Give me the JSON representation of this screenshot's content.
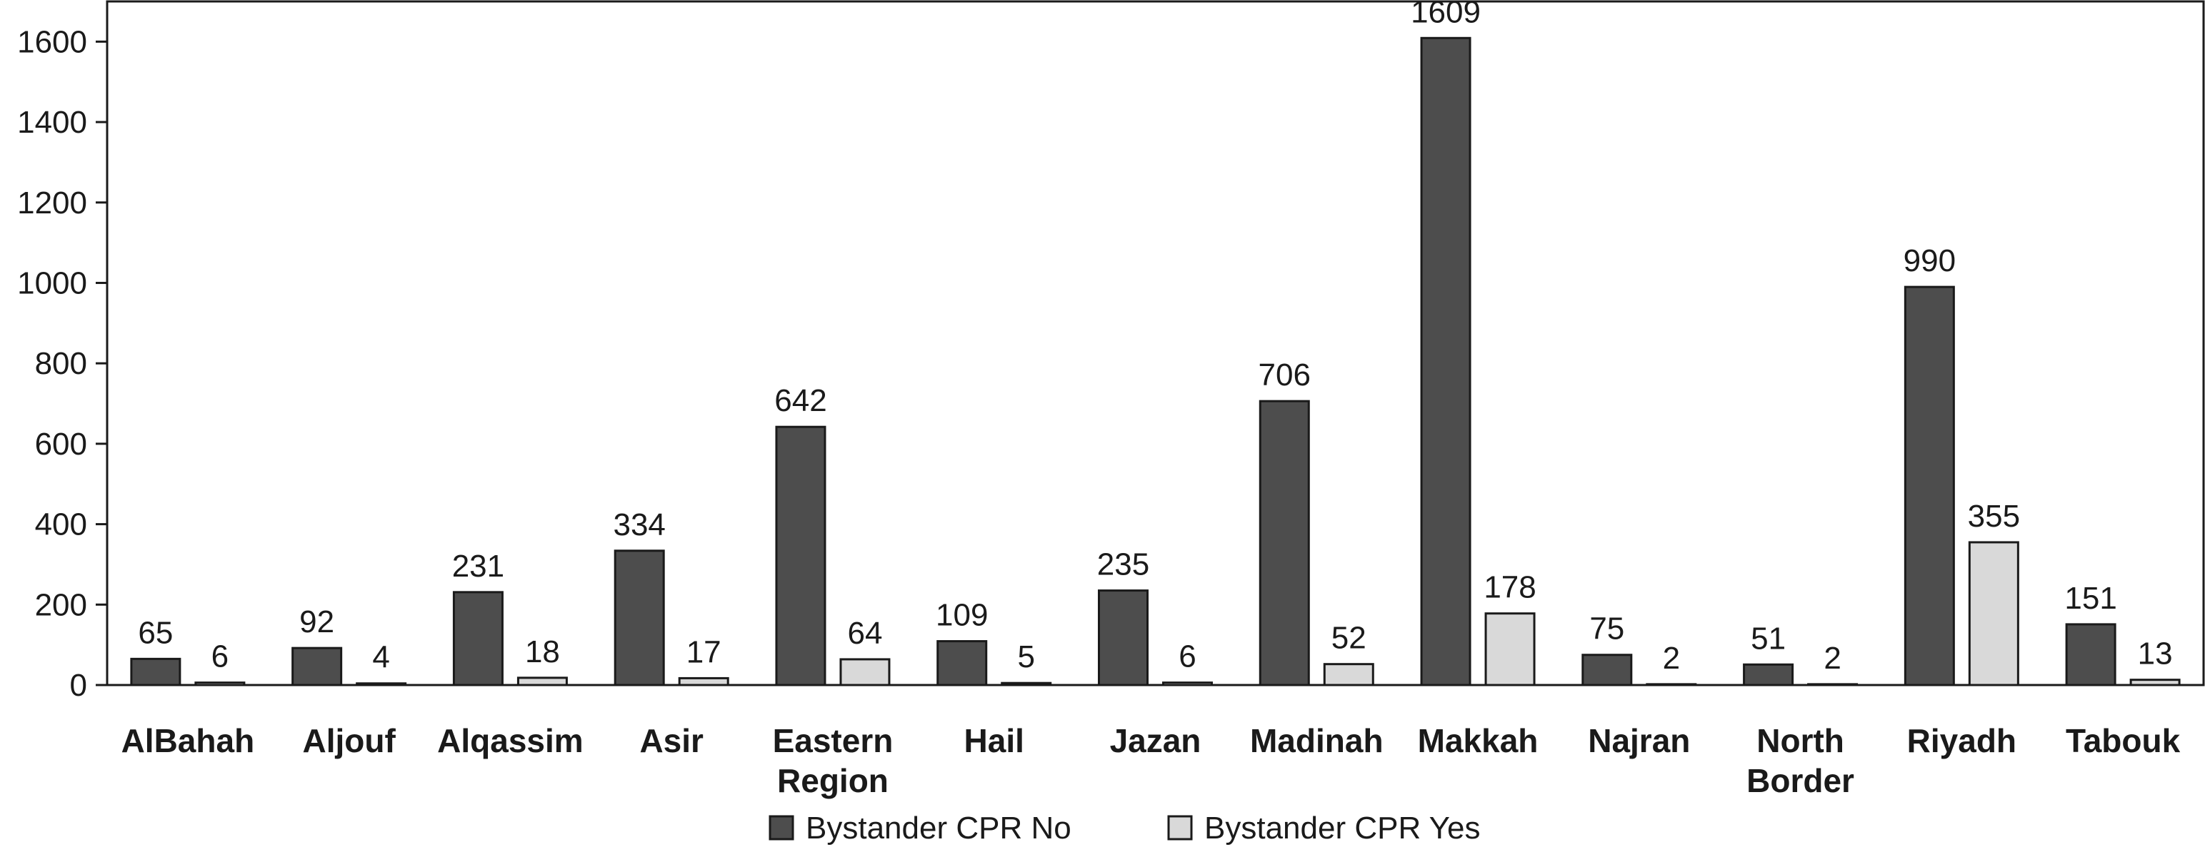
{
  "chart_data": {
    "type": "bar",
    "title": "",
    "xlabel": "",
    "ylabel": "",
    "ylim": [
      0,
      1700
    ],
    "yticks": [
      0,
      200,
      400,
      600,
      800,
      1000,
      1200,
      1400,
      1600
    ],
    "grid": false,
    "legend_position": "bottom-center",
    "categories": [
      [
        "AlBahah"
      ],
      [
        "Aljouf"
      ],
      [
        "Alqassim"
      ],
      [
        "Asir"
      ],
      [
        "Eastern",
        "Region"
      ],
      [
        "Hail"
      ],
      [
        "Jazan"
      ],
      [
        "Madinah"
      ],
      [
        "Makkah"
      ],
      [
        "Najran"
      ],
      [
        "North",
        "Border"
      ],
      [
        "Riyadh"
      ],
      [
        "Tabouk"
      ]
    ],
    "series": [
      {
        "name": "Bystander CPR No",
        "color": "#4d4d4d",
        "values": [
          65,
          92,
          231,
          334,
          642,
          109,
          235,
          706,
          1609,
          75,
          51,
          990,
          151
        ]
      },
      {
        "name": "Bystander CPR Yes",
        "color": "#d9d9d9",
        "values": [
          6,
          4,
          18,
          17,
          64,
          5,
          6,
          52,
          178,
          2,
          2,
          355,
          13
        ]
      }
    ]
  }
}
